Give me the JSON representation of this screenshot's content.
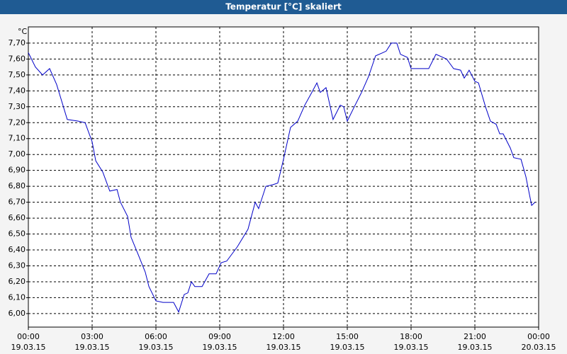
{
  "chart_data": {
    "type": "line",
    "title": "Temperatur [°C] skaliert",
    "y_label": "°C",
    "x": [
      0,
      0.33,
      0.67,
      1.0,
      1.33,
      1.83,
      2.33,
      2.67,
      3.0,
      3.17,
      3.5,
      3.83,
      4.17,
      4.33,
      4.67,
      4.83,
      5.17,
      5.5,
      5.67,
      6.0,
      6.33,
      6.67,
      6.83,
      7.07,
      7.33,
      7.5,
      7.67,
      7.83,
      8.17,
      8.5,
      8.83,
      9.07,
      9.33,
      9.83,
      10.33,
      10.67,
      10.83,
      11.17,
      11.5,
      11.73,
      12.0,
      12.33,
      12.67,
      13.0,
      13.33,
      13.57,
      13.73,
      14.0,
      14.33,
      14.67,
      14.83,
      15.0,
      15.33,
      15.67,
      16.0,
      16.33,
      16.67,
      16.83,
      17.07,
      17.33,
      17.5,
      17.83,
      18.0,
      18.83,
      19.17,
      19.67,
      20.0,
      20.33,
      20.5,
      20.73,
      21.0,
      21.17,
      21.5,
      21.73,
      22.0,
      22.17,
      22.33,
      22.67,
      22.83,
      23.17,
      23.4,
      23.67,
      23.83
    ],
    "series": [
      {
        "name": "Temperatur",
        "color": "#0000c8",
        "values": [
          7.64,
          7.55,
          7.5,
          7.54,
          7.44,
          7.22,
          7.21,
          7.2,
          7.08,
          6.96,
          6.89,
          6.77,
          6.78,
          6.7,
          6.61,
          6.48,
          6.37,
          6.26,
          6.17,
          6.08,
          6.07,
          6.07,
          6.07,
          6.01,
          6.12,
          6.13,
          6.2,
          6.17,
          6.17,
          6.25,
          6.25,
          6.32,
          6.33,
          6.42,
          6.53,
          6.7,
          6.66,
          6.8,
          6.81,
          6.82,
          6.97,
          7.17,
          7.21,
          7.31,
          7.39,
          7.45,
          7.39,
          7.42,
          7.22,
          7.31,
          7.3,
          7.21,
          7.3,
          7.39,
          7.49,
          7.62,
          7.64,
          7.65,
          7.7,
          7.7,
          7.63,
          7.61,
          7.54,
          7.54,
          7.63,
          7.6,
          7.54,
          7.53,
          7.48,
          7.53,
          7.46,
          7.45,
          7.3,
          7.21,
          7.19,
          7.13,
          7.13,
          7.04,
          6.98,
          6.97,
          6.86,
          6.68,
          6.7
        ]
      }
    ],
    "xlim": [
      0,
      24
    ],
    "ylim": [
      5.915,
      7.802
    ],
    "xticks": [
      {
        "value": 0,
        "label": "00:00"
      },
      {
        "value": 3,
        "label": "03:00"
      },
      {
        "value": 6,
        "label": "06:00"
      },
      {
        "value": 9,
        "label": "09:00"
      },
      {
        "value": 12,
        "label": "12:00"
      },
      {
        "value": 15,
        "label": "15:00"
      },
      {
        "value": 18,
        "label": "18:00"
      },
      {
        "value": 21,
        "label": "21:00"
      },
      {
        "value": 24,
        "label": "00:00"
      }
    ],
    "xtick_dates": [
      "19.03.15",
      "19.03.15",
      "19.03.15",
      "19.03.15",
      "19.03.15",
      "19.03.15",
      "19.03.15",
      "19.03.15",
      "20.03.15"
    ],
    "yticks": [
      {
        "value": 6.0,
        "label": "6,00"
      },
      {
        "value": 6.1,
        "label": "6,10"
      },
      {
        "value": 6.2,
        "label": "6,20"
      },
      {
        "value": 6.3,
        "label": "6,30"
      },
      {
        "value": 6.4,
        "label": "6,40"
      },
      {
        "value": 6.5,
        "label": "6,50"
      },
      {
        "value": 6.6,
        "label": "6,60"
      },
      {
        "value": 6.7,
        "label": "6,70"
      },
      {
        "value": 6.8,
        "label": "6,80"
      },
      {
        "value": 6.9,
        "label": "6,90"
      },
      {
        "value": 7.0,
        "label": "7,00"
      },
      {
        "value": 7.1,
        "label": "7,10"
      },
      {
        "value": 7.2,
        "label": "7,20"
      },
      {
        "value": 7.3,
        "label": "7,30"
      },
      {
        "value": 7.4,
        "label": "7,40"
      },
      {
        "value": 7.5,
        "label": "7,50"
      },
      {
        "value": 7.6,
        "label": "7,60"
      },
      {
        "value": 7.7,
        "label": "7,70"
      }
    ],
    "grid": true
  }
}
